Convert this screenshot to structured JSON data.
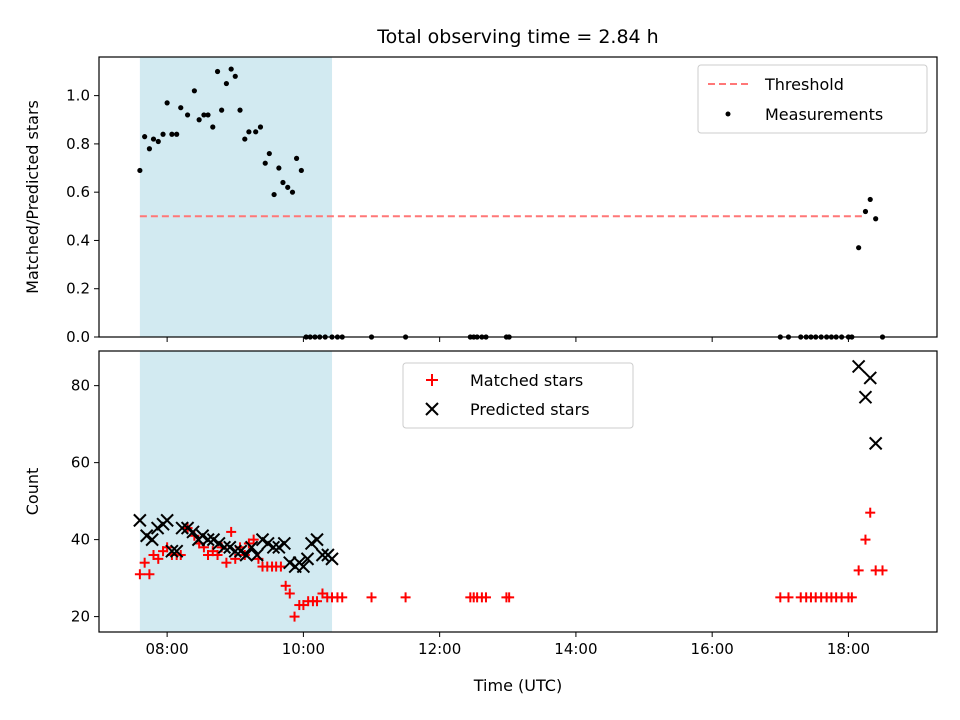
{
  "chart_data": {
    "type": "scatter",
    "title": "Total observing time = 2.84 h",
    "xlabel": "Time (UTC)",
    "x_unit": "hours (UTC)",
    "xlim": [
      7.0,
      19.3
    ],
    "xticks": [
      8,
      10,
      12,
      14,
      16,
      18
    ],
    "xtick_labels": [
      "08:00",
      "10:00",
      "12:00",
      "14:00",
      "16:00",
      "18:00"
    ],
    "shaded_interval": {
      "x0": 7.6,
      "x1": 10.42,
      "color": "#add8e6"
    },
    "panels": [
      {
        "ylabel": "Matched/Predicted stars",
        "ylim": [
          0.0,
          1.16
        ],
        "yticks": [
          0.0,
          0.2,
          0.4,
          0.6,
          0.8,
          1.0
        ],
        "ytick_labels": [
          "0.0",
          "0.2",
          "0.4",
          "0.6",
          "0.8",
          "1.0"
        ],
        "legend": "top-right",
        "series": [
          {
            "name": "Threshold",
            "kind": "line",
            "style": "dashed",
            "color": "#ff7777",
            "x": [
              7.6,
              18.2
            ],
            "y": [
              0.5,
              0.5
            ]
          },
          {
            "name": "Measurements",
            "kind": "dot",
            "color": "#000000",
            "x": [
              7.6,
              7.67,
              7.74,
              7.8,
              7.87,
              7.94,
              8.0,
              8.07,
              8.14,
              8.2,
              8.3,
              8.4,
              8.47,
              8.54,
              8.6,
              8.67,
              8.74,
              8.8,
              8.87,
              8.94,
              9.0,
              9.07,
              9.14,
              9.2,
              9.3,
              9.37,
              9.44,
              9.5,
              9.57,
              9.64,
              9.7,
              9.77,
              9.84,
              9.9,
              9.97,
              10.04,
              10.1,
              10.17,
              10.24,
              10.32,
              10.42,
              10.5,
              10.57,
              11.0,
              11.5,
              12.45,
              12.5,
              12.55,
              12.62,
              12.68,
              12.98,
              13.02,
              17.0,
              17.12,
              17.3,
              17.38,
              17.45,
              17.52,
              17.6,
              17.68,
              17.75,
              17.82,
              17.9,
              18.0,
              18.05,
              18.15,
              18.25,
              18.32,
              18.4,
              18.5
            ],
            "y": [
              0.69,
              0.83,
              0.78,
              0.82,
              0.81,
              0.84,
              0.97,
              0.84,
              0.84,
              0.95,
              0.92,
              1.02,
              0.9,
              0.92,
              0.92,
              0.87,
              1.1,
              0.94,
              1.05,
              1.11,
              1.08,
              0.94,
              0.82,
              0.85,
              0.85,
              0.87,
              0.72,
              0.76,
              0.59,
              0.7,
              0.64,
              0.62,
              0.6,
              0.74,
              0.69,
              0.0,
              0.0,
              0.0,
              0.0,
              0.0,
              0.0,
              0.0,
              0.0,
              0.0,
              0.0,
              0.0,
              0.0,
              0.0,
              0.0,
              0.0,
              0.0,
              0.0,
              0.0,
              0.0,
              0.0,
              0.0,
              0.0,
              0.0,
              0.0,
              0.0,
              0.0,
              0.0,
              0.0,
              0.0,
              0.0,
              0.37,
              0.52,
              0.57,
              0.49,
              0.0
            ]
          }
        ]
      },
      {
        "ylabel": "Count",
        "ylim": [
          16,
          89
        ],
        "yticks": [
          20,
          40,
          60,
          80
        ],
        "ytick_labels": [
          "20",
          "40",
          "60",
          "80"
        ],
        "legend": "top-center",
        "series": [
          {
            "name": "Matched stars",
            "kind": "plus",
            "color": "#ff0000",
            "x": [
              7.6,
              7.67,
              7.74,
              7.8,
              7.87,
              7.94,
              8.0,
              8.07,
              8.14,
              8.2,
              8.3,
              8.4,
              8.47,
              8.54,
              8.6,
              8.67,
              8.74,
              8.8,
              8.87,
              8.94,
              9.0,
              9.07,
              9.14,
              9.2,
              9.27,
              9.34,
              9.4,
              9.47,
              9.54,
              9.6,
              9.67,
              9.74,
              9.8,
              9.87,
              9.94,
              10.0,
              10.07,
              10.14,
              10.2,
              10.28,
              10.35,
              10.42,
              10.5,
              10.57,
              11.0,
              11.5,
              12.45,
              12.5,
              12.55,
              12.62,
              12.68,
              12.98,
              13.02,
              17.0,
              17.12,
              17.3,
              17.38,
              17.45,
              17.52,
              17.6,
              17.68,
              17.75,
              17.82,
              17.9,
              18.0,
              18.05,
              18.15,
              18.25,
              18.32,
              18.4,
              18.5
            ],
            "y": [
              31,
              34,
              31,
              36,
              35,
              37,
              38,
              36,
              36,
              36,
              43,
              41,
              39,
              38,
              36,
              37,
              36,
              38,
              34,
              42,
              35,
              38,
              36,
              39,
              40,
              35,
              33,
              33,
              33,
              33,
              33,
              28,
              26,
              20,
              23,
              23,
              24,
              24,
              24,
              26,
              25,
              25,
              25,
              25,
              25,
              25,
              25,
              25,
              25,
              25,
              25,
              25,
              25,
              25,
              25,
              25,
              25,
              25,
              25,
              25,
              25,
              25,
              25,
              25,
              25,
              25,
              32,
              40,
              47,
              32,
              32
            ]
          },
          {
            "name": "Predicted stars",
            "kind": "x",
            "color": "#000000",
            "x": [
              7.6,
              7.7,
              7.78,
              7.86,
              7.94,
              8.0,
              8.07,
              8.14,
              8.22,
              8.3,
              8.38,
              8.46,
              8.52,
              8.6,
              8.68,
              8.76,
              8.84,
              8.92,
              9.0,
              9.08,
              9.16,
              9.24,
              9.32,
              9.4,
              9.48,
              9.56,
              9.64,
              9.72,
              9.8,
              9.88,
              9.94,
              10.0,
              10.06,
              10.12,
              10.2,
              10.28,
              10.36,
              10.42,
              18.15,
              18.25,
              18.32,
              18.4
            ],
            "y": [
              45,
              41,
              40,
              43,
              44,
              45,
              37,
              37,
              43,
              43,
              42,
              40,
              41,
              40,
              40,
              39,
              38,
              38,
              37,
              37,
              36,
              38,
              36,
              40,
              39,
              38,
              38,
              39,
              34,
              33,
              34,
              33,
              35,
              39,
              40,
              36,
              36,
              35,
              85,
              77,
              82,
              65
            ]
          }
        ]
      }
    ]
  }
}
